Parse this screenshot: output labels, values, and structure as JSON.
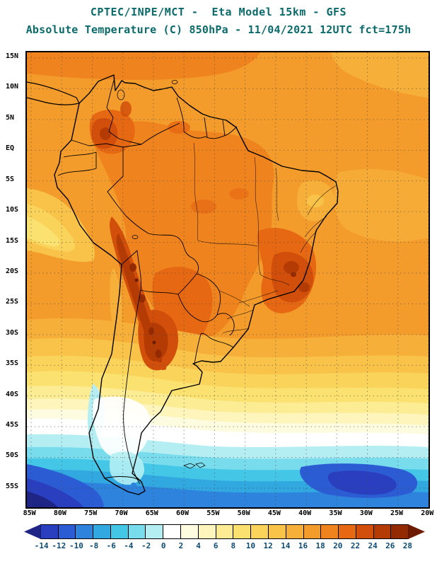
{
  "header": {
    "line1": "CPTEC/INPE/MCT -  Eta Model 15km - GFS",
    "line2": "Absolute Temperature (C) 850hPa - 11/04/2021 12UTC fct=175h"
  },
  "colors": {
    "title_text": "#0B6A6A",
    "axis_text": "#000000",
    "colorbar_label_text": "#0D4B70",
    "base_field_orange": "#F39C2B"
  },
  "map": {
    "lat_labels": [
      "15N",
      "10N",
      "5N",
      "EQ",
      "5S",
      "10S",
      "15S",
      "20S",
      "25S",
      "30S",
      "35S",
      "40S",
      "45S",
      "50S",
      "55S"
    ],
    "lon_labels": [
      "85W",
      "80W",
      "75W",
      "70W",
      "65W",
      "60W",
      "55W",
      "50W",
      "45W",
      "40W",
      "35W",
      "30W",
      "25W",
      "20W"
    ]
  },
  "colorbar": {
    "units": "C",
    "tick_labels": [
      "-14",
      "-12",
      "-10",
      "-8",
      "-6",
      "-4",
      "-2",
      "0",
      "2",
      "4",
      "6",
      "8",
      "10",
      "12",
      "14",
      "16",
      "18",
      "20",
      "22",
      "24",
      "26",
      "28"
    ],
    "cell_colors": [
      "#1F2585",
      "#2A3FBF",
      "#2C5CD4",
      "#2E83DC",
      "#31A8E0",
      "#44C7E6",
      "#78DCEC",
      "#B4EEF3",
      "#FFFFFF",
      "#FEFCE0",
      "#FDF5BB",
      "#FCEC94",
      "#FBE170",
      "#FAD35B",
      "#F8C348",
      "#F6B039",
      "#F39C2B",
      "#EF831E",
      "#E66812",
      "#D14F0A",
      "#B53B05",
      "#942A02",
      "#6E1C01"
    ]
  },
  "chart_data": {
    "type": "heatmap",
    "title": "Absolute Temperature (C) 850hPa",
    "model": "Eta Model 15km - GFS",
    "run": "11/04/2021 12UTC",
    "forecast": "fct=175h",
    "scale_degC": {
      "min": -14,
      "max": 28,
      "step": 2
    },
    "lat_range": [
      "15N",
      "55S"
    ],
    "lon_range": [
      "85W",
      "20W"
    ],
    "field_summary": "Warm orange field (16-22C) over tropical South America and adjacent oceans; hottest (24-28C+) dark-red band along the Andes from Peru to NW Argentina and patches over eastern Brazil and Colombia; cool yellow tongue along Peru coast; temperatures drop southward through yellow, white and cyan bands to deep blue (-8 to -14C) near 55S, darkest at the far southwest and a cold blue pocket southeast near 40W."
  }
}
